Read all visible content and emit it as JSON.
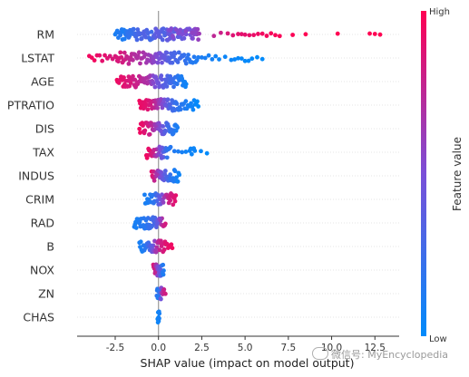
{
  "chart_data": {
    "type": "scatter",
    "subtype": "shap-beeswarm",
    "xlabel": "SHAP value (impact on model output)",
    "xlim": [
      -4.7,
      13.9
    ],
    "xticks": [
      -2.5,
      0.0,
      2.5,
      5.0,
      7.5,
      10.0,
      12.5
    ],
    "xtick_labels": [
      "-2.5",
      "0.0",
      "2.5",
      "5.0",
      "7.5",
      "10.0",
      "12.5"
    ],
    "features": [
      "RM",
      "LSTAT",
      "AGE",
      "PTRATIO",
      "DIS",
      "TAX",
      "INDUS",
      "CRIM",
      "RAD",
      "B",
      "NOX",
      "ZN",
      "CHAS"
    ],
    "colorbar": {
      "label": "Feature value",
      "high_label": "High",
      "low_label": "Low",
      "low_color": "#008bfb",
      "mid_color": "#7a4fd8",
      "high_color": "#ff0052"
    },
    "series": [
      {
        "feature": "RM",
        "shap_min": -2.6,
        "shap_max": 13.0,
        "points": [
          [
            -2.5,
            0.1
          ],
          [
            -2.2,
            0.15
          ],
          [
            -2.0,
            0.1
          ],
          [
            -1.8,
            0.2
          ],
          [
            -1.6,
            0.2
          ],
          [
            -1.4,
            0.25
          ],
          [
            -1.2,
            0.3
          ],
          [
            -1.0,
            0.3
          ],
          [
            -0.8,
            0.35
          ],
          [
            -0.6,
            0.3
          ],
          [
            -0.4,
            0.25
          ],
          [
            -0.2,
            0.4
          ],
          [
            0.0,
            0.4
          ],
          [
            0.2,
            0.35
          ],
          [
            0.4,
            0.3
          ],
          [
            0.6,
            0.45
          ],
          [
            0.8,
            0.4
          ],
          [
            1.0,
            0.35
          ],
          [
            1.3,
            0.4
          ],
          [
            1.6,
            0.45
          ],
          [
            1.9,
            0.5
          ],
          [
            2.1,
            0.55
          ],
          [
            2.3,
            0.6
          ],
          [
            0.5,
            0.5
          ],
          [
            0.9,
            0.55
          ],
          [
            1.5,
            0.5
          ],
          [
            3.2,
            0.75
          ],
          [
            4.0,
            0.85
          ],
          [
            4.6,
            0.9
          ],
          [
            5.0,
            0.9
          ],
          [
            5.5,
            0.92
          ],
          [
            6.0,
            0.95
          ],
          [
            6.5,
            0.97
          ],
          [
            7.0,
            0.98
          ],
          [
            8.5,
            1.0
          ],
          [
            12.2,
            1.0
          ],
          [
            12.8,
            1.0
          ]
        ]
      },
      {
        "feature": "LSTAT",
        "shap_min": -4.1,
        "shap_max": 6.0,
        "points": [
          [
            -4.0,
            0.95
          ],
          [
            -3.7,
            0.95
          ],
          [
            -3.4,
            0.9
          ],
          [
            -3.1,
            0.9
          ],
          [
            -2.8,
            0.85
          ],
          [
            -2.5,
            0.85
          ],
          [
            -2.2,
            0.85
          ],
          [
            -1.9,
            0.8
          ],
          [
            -1.6,
            0.75
          ],
          [
            -1.3,
            0.7
          ],
          [
            -1.0,
            0.7
          ],
          [
            -0.7,
            0.65
          ],
          [
            -0.4,
            0.6
          ],
          [
            -0.2,
            0.55
          ],
          [
            0.0,
            0.5
          ],
          [
            0.2,
            0.45
          ],
          [
            0.4,
            0.4
          ],
          [
            0.6,
            0.35
          ],
          [
            0.8,
            0.3
          ],
          [
            1.0,
            0.3
          ],
          [
            1.3,
            0.25
          ],
          [
            1.6,
            0.2
          ],
          [
            1.9,
            0.15
          ],
          [
            2.3,
            0.12
          ],
          [
            2.7,
            0.1
          ],
          [
            3.1,
            0.08
          ],
          [
            3.5,
            0.05
          ],
          [
            4.2,
            0.05
          ],
          [
            4.6,
            0.03
          ],
          [
            5.0,
            0.02
          ],
          [
            5.4,
            0.02
          ],
          [
            6.0,
            0.0
          ]
        ]
      },
      {
        "feature": "AGE",
        "shap_min": -2.5,
        "shap_max": 1.6,
        "points": [
          [
            -2.4,
            0.95
          ],
          [
            -2.2,
            0.9
          ],
          [
            -2.0,
            0.9
          ],
          [
            -1.8,
            0.85
          ],
          [
            -1.6,
            0.85
          ],
          [
            -1.4,
            0.8
          ],
          [
            -1.2,
            0.8
          ],
          [
            -1.0,
            0.75
          ],
          [
            -0.8,
            0.7
          ],
          [
            -0.6,
            0.7
          ],
          [
            -0.4,
            0.6
          ],
          [
            -0.2,
            0.5
          ],
          [
            0.0,
            0.45
          ],
          [
            0.2,
            0.4
          ],
          [
            0.4,
            0.35
          ],
          [
            0.6,
            0.3
          ],
          [
            0.8,
            0.25
          ],
          [
            1.0,
            0.2
          ],
          [
            1.2,
            0.15
          ],
          [
            1.4,
            0.1
          ],
          [
            1.6,
            0.05
          ]
        ]
      },
      {
        "feature": "PTRATIO",
        "shap_min": -1.2,
        "shap_max": 2.3,
        "points": [
          [
            -1.1,
            0.95
          ],
          [
            -0.9,
            0.9
          ],
          [
            -0.7,
            0.9
          ],
          [
            -0.5,
            0.85
          ],
          [
            -0.3,
            0.8
          ],
          [
            -0.1,
            0.7
          ],
          [
            0.1,
            0.6
          ],
          [
            0.3,
            0.5
          ],
          [
            0.5,
            0.4
          ],
          [
            0.7,
            0.3
          ],
          [
            0.9,
            0.25
          ],
          [
            1.1,
            0.2
          ],
          [
            1.4,
            0.15
          ],
          [
            1.7,
            0.1
          ],
          [
            2.0,
            0.05
          ],
          [
            2.3,
            0.0
          ]
        ]
      },
      {
        "feature": "DIS",
        "shap_min": -1.2,
        "shap_max": 1.2,
        "points": [
          [
            -1.1,
            0.95
          ],
          [
            -0.9,
            0.9
          ],
          [
            -0.7,
            0.85
          ],
          [
            -0.5,
            0.8
          ],
          [
            -0.3,
            0.7
          ],
          [
            -0.1,
            0.6
          ],
          [
            0.1,
            0.5
          ],
          [
            0.3,
            0.4
          ],
          [
            0.5,
            0.3
          ],
          [
            0.7,
            0.2
          ],
          [
            0.9,
            0.15
          ],
          [
            1.1,
            0.1
          ]
        ]
      },
      {
        "feature": "TAX",
        "shap_min": -0.7,
        "shap_max": 2.9,
        "points": [
          [
            -0.7,
            0.95
          ],
          [
            -0.5,
            0.9
          ],
          [
            -0.3,
            0.8
          ],
          [
            -0.1,
            0.65
          ],
          [
            0.1,
            0.5
          ],
          [
            0.3,
            0.35
          ],
          [
            0.5,
            0.2
          ],
          [
            0.7,
            0.15
          ],
          [
            1.8,
            0.05
          ],
          [
            2.1,
            0.05
          ],
          [
            2.8,
            0.0
          ]
        ]
      },
      {
        "feature": "INDUS",
        "shap_min": -0.4,
        "shap_max": 1.2,
        "points": [
          [
            -0.4,
            0.9
          ],
          [
            -0.2,
            0.75
          ],
          [
            0.0,
            0.6
          ],
          [
            0.2,
            0.45
          ],
          [
            0.4,
            0.35
          ],
          [
            0.6,
            0.25
          ],
          [
            0.8,
            0.15
          ],
          [
            1.0,
            0.1
          ],
          [
            1.2,
            0.05
          ]
        ]
      },
      {
        "feature": "CRIM",
        "shap_min": -0.8,
        "shap_max": 1.0,
        "points": [
          [
            -0.8,
            0.1
          ],
          [
            -0.6,
            0.1
          ],
          [
            -0.4,
            0.15
          ],
          [
            -0.2,
            0.2
          ],
          [
            0.0,
            0.35
          ],
          [
            0.2,
            0.5
          ],
          [
            0.4,
            0.7
          ],
          [
            0.6,
            0.8
          ],
          [
            0.8,
            0.85
          ],
          [
            1.0,
            0.9
          ]
        ]
      },
      {
        "feature": "RAD",
        "shap_min": -1.4,
        "shap_max": 0.5,
        "points": [
          [
            -1.4,
            0.1
          ],
          [
            -1.2,
            0.1
          ],
          [
            -1.0,
            0.15
          ],
          [
            -0.8,
            0.15
          ],
          [
            -0.6,
            0.2
          ],
          [
            -0.4,
            0.25
          ],
          [
            -0.2,
            0.3
          ],
          [
            0.0,
            0.45
          ],
          [
            0.2,
            0.7
          ],
          [
            0.4,
            0.85
          ]
        ]
      },
      {
        "feature": "B",
        "shap_min": -1.1,
        "shap_max": 0.8,
        "points": [
          [
            -1.1,
            0.1
          ],
          [
            -0.9,
            0.1
          ],
          [
            -0.7,
            0.2
          ],
          [
            -0.5,
            0.3
          ],
          [
            -0.3,
            0.5
          ],
          [
            -0.1,
            0.7
          ],
          [
            0.1,
            0.8
          ],
          [
            0.3,
            0.85
          ],
          [
            0.5,
            0.9
          ],
          [
            0.8,
            0.95
          ]
        ]
      },
      {
        "feature": "NOX",
        "shap_min": -0.3,
        "shap_max": 0.3,
        "points": [
          [
            -0.3,
            0.85
          ],
          [
            -0.2,
            0.8
          ],
          [
            -0.1,
            0.6
          ],
          [
            0.0,
            0.5
          ],
          [
            0.1,
            0.4
          ],
          [
            0.2,
            0.2
          ],
          [
            0.3,
            0.1
          ]
        ]
      },
      {
        "feature": "ZN",
        "shap_min": -0.1,
        "shap_max": 0.4,
        "points": [
          [
            -0.1,
            0.2
          ],
          [
            0.0,
            0.1
          ],
          [
            0.1,
            0.3
          ],
          [
            0.2,
            0.7
          ],
          [
            0.4,
            0.85
          ]
        ]
      },
      {
        "feature": "CHAS",
        "shap_min": -0.05,
        "shap_max": 0.05,
        "points": [
          [
            -0.05,
            0.05
          ],
          [
            0.0,
            0.05
          ],
          [
            0.05,
            0.1
          ]
        ]
      }
    ]
  },
  "watermark": {
    "icon": "wechat-icon",
    "text": "微信号: MyEncyclopedia"
  }
}
